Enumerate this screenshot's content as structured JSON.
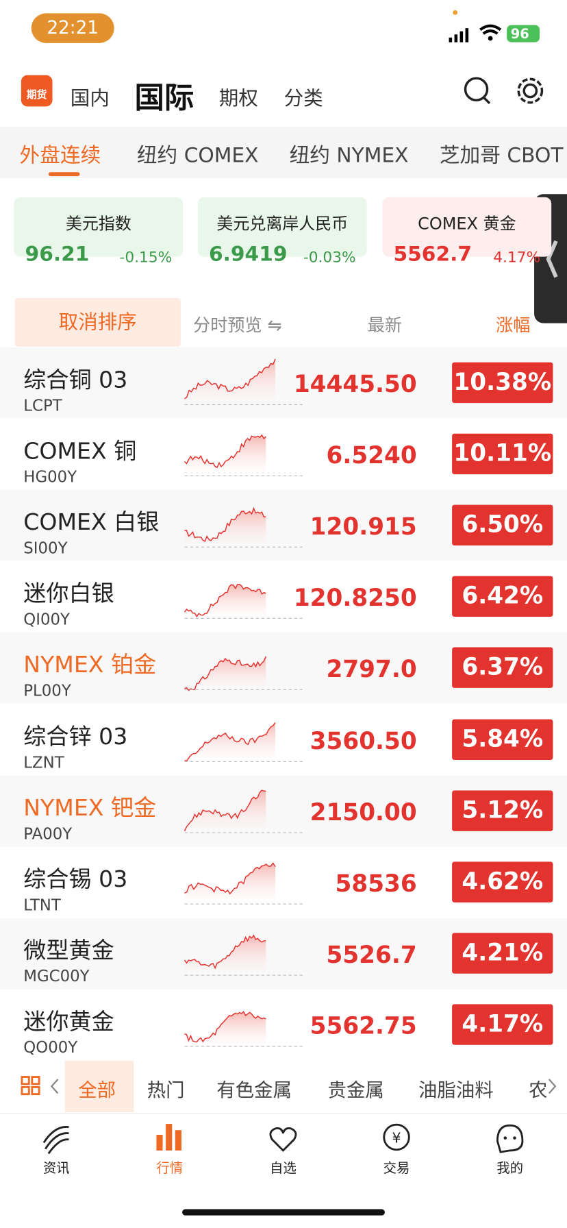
{
  "status": {
    "time": "22:21",
    "battery": "96"
  },
  "header": {
    "logo": "期货",
    "tabs": [
      "国内",
      "国际",
      "期权",
      "分类"
    ]
  },
  "subtabs": [
    "外盘连续",
    "纽约 COMEX",
    "纽约 NYMEX",
    "芝加哥 CBOT"
  ],
  "cards": [
    {
      "name": "美元指数",
      "price": "96.21",
      "change": "-0.15%"
    },
    {
      "name": "美元兑离岸人民币",
      "price": "6.9419",
      "change": "-0.03%"
    },
    {
      "name": "COMEX 黄金",
      "price": "5562.7",
      "change": "4.17%"
    }
  ],
  "sortbar": {
    "cancel": "取消排序",
    "preview": "分时预览 ⇋",
    "latest": "最新",
    "change": "涨幅"
  },
  "rows": [
    {
      "name": "综合铜 03",
      "code": "LCPT",
      "price": "14445.50",
      "change": "10.38%"
    },
    {
      "name": "COMEX 铜",
      "code": "HG00Y",
      "price": "6.5240",
      "change": "10.11%"
    },
    {
      "name": "COMEX 白银",
      "code": "SI00Y",
      "price": "120.915",
      "change": "6.50%"
    },
    {
      "name": "迷你白银",
      "code": "QI00Y",
      "price": "120.8250",
      "change": "6.42%"
    },
    {
      "name": "NYMEX 铂金",
      "code": "PL00Y",
      "price": "2797.0",
      "change": "6.37%"
    },
    {
      "name": "综合锌 03",
      "code": "LZNT",
      "price": "3560.50",
      "change": "5.84%"
    },
    {
      "name": "NYMEX 钯金",
      "code": "PA00Y",
      "price": "2150.00",
      "change": "5.12%"
    },
    {
      "name": "综合锡 03",
      "code": "LTNT",
      "price": "58536",
      "change": "4.62%"
    },
    {
      "name": "微型黄金",
      "code": "MGC00Y",
      "price": "5526.7",
      "change": "4.21%"
    },
    {
      "name": "迷你黄金",
      "code": "QO00Y",
      "price": "5562.75",
      "change": "4.17%"
    }
  ],
  "categories": [
    "全部",
    "热门",
    "有色金属",
    "贵金属",
    "油脂油料",
    "农"
  ],
  "nav": [
    "资讯",
    "行情",
    "自选",
    "交易",
    "我的"
  ]
}
